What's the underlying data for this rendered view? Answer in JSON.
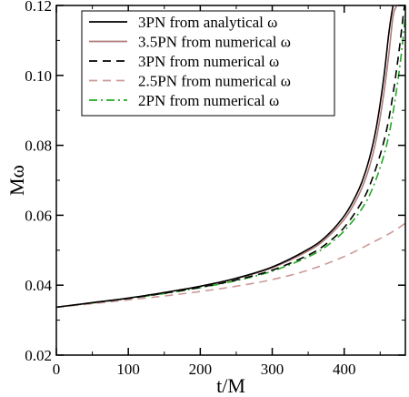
{
  "chart_data": {
    "type": "line",
    "title": "",
    "xlabel": "t/M",
    "ylabel": "Mω",
    "xlim": [
      0,
      485
    ],
    "ylim": [
      0.02,
      0.12
    ],
    "x_ticks": [
      0,
      100,
      200,
      300,
      400
    ],
    "x_tick_labels": [
      "0",
      "100",
      "200",
      "300",
      "400"
    ],
    "y_ticks": [
      0.02,
      0.04,
      0.06,
      0.08,
      0.1,
      0.12
    ],
    "y_tick_labels": [
      "0.02",
      "0.04",
      "0.06",
      "0.08",
      "0.10",
      "0.12"
    ],
    "grid": false,
    "legend_position": "top-left",
    "series": [
      {
        "name": "3PN from analytical ω",
        "color": "#000000",
        "dash": "solid",
        "x": [
          0,
          50,
          100,
          150,
          200,
          250,
          300,
          350,
          375,
          400,
          415,
          425,
          435,
          445,
          455,
          462,
          468,
          472,
          475
        ],
        "y": [
          0.0337,
          0.035,
          0.0363,
          0.0379,
          0.0397,
          0.042,
          0.0452,
          0.0503,
          0.054,
          0.0598,
          0.0651,
          0.0697,
          0.0762,
          0.0855,
          0.0993,
          0.112,
          0.12,
          0.122,
          0.1235
        ]
      },
      {
        "name": "3.5PN from numerical ω",
        "color": "#b07a7a",
        "dash": "solid",
        "x": [
          0,
          50,
          100,
          150,
          200,
          250,
          300,
          350,
          375,
          400,
          415,
          425,
          435,
          445,
          455,
          462,
          468,
          473,
          477
        ],
        "y": [
          0.0337,
          0.035,
          0.0363,
          0.0379,
          0.0397,
          0.0419,
          0.045,
          0.0498,
          0.0534,
          0.0588,
          0.0637,
          0.068,
          0.0738,
          0.0822,
          0.0947,
          0.106,
          0.117,
          0.12,
          0.123
        ]
      },
      {
        "name": "3PN from numerical ω",
        "color": "#000000",
        "dash": "dashed",
        "x": [
          0,
          50,
          100,
          150,
          200,
          250,
          300,
          350,
          375,
          400,
          425,
          440,
          455,
          465,
          475,
          482,
          486
        ],
        "y": [
          0.0337,
          0.035,
          0.0362,
          0.0377,
          0.0394,
          0.0415,
          0.0443,
          0.0486,
          0.0518,
          0.0565,
          0.064,
          0.071,
          0.081,
          0.091,
          0.105,
          0.117,
          0.123
        ]
      },
      {
        "name": "2.5PN from numerical ω",
        "color": "#cc9999",
        "dash": "dashed",
        "x": [
          0,
          50,
          100,
          150,
          200,
          250,
          300,
          350,
          400,
          440,
          465,
          485
        ],
        "y": [
          0.0337,
          0.0347,
          0.0358,
          0.0369,
          0.0382,
          0.0397,
          0.0416,
          0.0443,
          0.0482,
          0.0523,
          0.055,
          0.0577
        ]
      },
      {
        "name": "2PN from numerical ω",
        "color": "#22aa22",
        "dash": "dashdot",
        "x": [
          0,
          50,
          100,
          150,
          200,
          250,
          300,
          350,
          375,
          400,
          425,
          440,
          455,
          465,
          475,
          482,
          486
        ],
        "y": [
          0.0337,
          0.0349,
          0.0362,
          0.0376,
          0.0393,
          0.0413,
          0.044,
          0.0481,
          0.0511,
          0.0555,
          0.062,
          0.068,
          0.077,
          0.086,
          0.099,
          0.111,
          0.12
        ]
      }
    ]
  }
}
